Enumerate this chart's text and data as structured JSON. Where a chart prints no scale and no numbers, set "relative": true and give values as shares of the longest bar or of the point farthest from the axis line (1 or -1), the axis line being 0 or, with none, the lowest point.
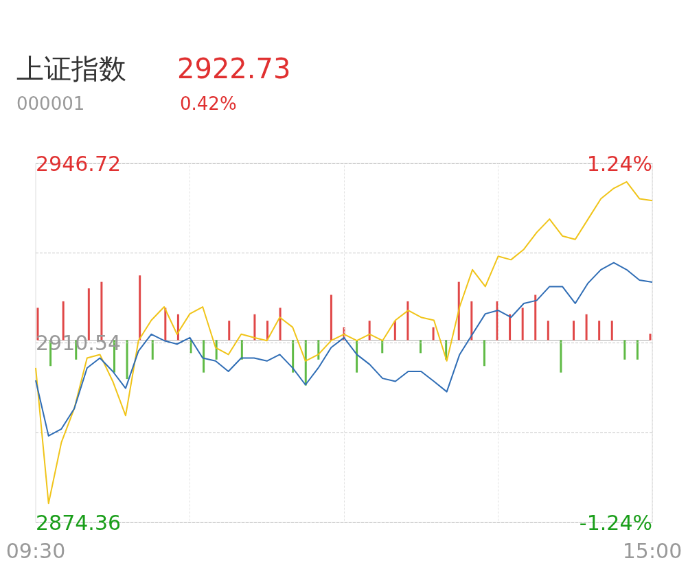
{
  "chart_data": [
    {
      "type": "line",
      "title": "上证指数",
      "annotations": [
        "2922.73",
        "000001",
        "0.42%"
      ],
      "categories": [
        "09:30",
        null,
        null,
        null,
        null,
        null,
        null,
        null,
        null,
        null,
        null,
        null,
        null,
        null,
        null,
        null,
        null,
        null,
        null,
        null,
        null,
        null,
        null,
        null,
        null,
        null,
        null,
        null,
        null,
        null,
        null,
        null,
        null,
        null,
        null,
        null,
        null,
        null,
        null,
        null,
        null,
        null,
        null,
        null,
        null,
        null,
        null,
        null,
        "15:00"
      ],
      "series": [
        {
          "color": "#f0c419",
          "values": [
            2905.5,
            2878.2,
            2890.5,
            2897.3,
            2907.5,
            2908.2,
            2902.8,
            2895.9,
            2911.0,
            2915.1,
            2917.8,
            2912.3,
            2916.4,
            2917.8,
            2909.6,
            2908.2,
            2912.3,
            2911.6,
            2911.0,
            2915.7,
            2913.7,
            2906.9,
            2908.2,
            2911.0,
            2912.3,
            2911.0,
            2912.3,
            2911.0,
            2915.1,
            2917.1,
            2915.7,
            2915.1,
            2906.9,
            2917.8,
            2925.3,
            2921.9,
            2928.0,
            2927.3,
            2929.4,
            2932.8,
            2935.5,
            2932.1,
            2931.4,
            2935.5,
            2939.6,
            2941.7,
            2943.0,
            2939.6,
            2939.2
          ]
        },
        {
          "color": "#2f6db5",
          "values": [
            2903.0,
            2891.8,
            2893.2,
            2897.3,
            2905.5,
            2907.5,
            2904.8,
            2901.4,
            2908.9,
            2912.3,
            2911.0,
            2910.3,
            2911.6,
            2907.5,
            2906.9,
            2904.8,
            2907.5,
            2907.5,
            2906.9,
            2908.2,
            2905.5,
            2902.1,
            2905.5,
            2909.6,
            2911.6,
            2908.2,
            2906.2,
            2903.4,
            2902.8,
            2904.8,
            2904.8,
            2902.8,
            2900.7,
            2908.2,
            2912.3,
            2916.4,
            2917.1,
            2915.7,
            2918.5,
            2919.1,
            2921.9,
            2921.9,
            2918.5,
            2922.6,
            2925.3,
            2926.7,
            2925.3,
            2923.2,
            2922.8
          ]
        }
      ],
      "ylim": [
        2874.36,
        2946.72
      ],
      "yticks": [
        2874.36,
        {
          "value": 2892.45,
          "label": null
        },
        2910.54,
        {
          "value": 2928.63,
          "label": null
        },
        2946.72
      ],
      "y2lim": [
        -1.24,
        1.24
      ],
      "y2ticks": [
        {
          "value": -1.24,
          "label": "-1.24%"
        },
        {
          "value": 1.24,
          "label": "1.24%"
        }
      ],
      "grid": true,
      "marker": "none",
      "line_style": "solid"
    },
    {
      "type": "bar",
      "relative": true,
      "categories": [
        null,
        null,
        null,
        null,
        null,
        null,
        null,
        null,
        null,
        null,
        null,
        null,
        null,
        null,
        null,
        null,
        null,
        null,
        null,
        null,
        null,
        null,
        null,
        null,
        null,
        null,
        null,
        null,
        null,
        null,
        null,
        null,
        null,
        null,
        null,
        null,
        null,
        null,
        null,
        null,
        null,
        null,
        null,
        null,
        null,
        null,
        null,
        null,
        null
      ],
      "values": [
        0.5,
        -0.4,
        0.6,
        -0.3,
        0.8,
        0.9,
        -0.5,
        -0.6,
        1,
        -0.3,
        0.5,
        0.4,
        -0.2,
        -0.5,
        -0.3,
        0.3,
        -0.3,
        0.4,
        0.3,
        0.5,
        -0.5,
        -0.7,
        -0.3,
        0.7,
        0.2,
        -0.5,
        0.3,
        -0.2,
        0.3,
        0.6,
        -0.2,
        0.2,
        -0.3,
        0.9,
        0.6,
        -0.4,
        0.6,
        0.4,
        0.5,
        0.7,
        0.3,
        -0.5,
        0.3,
        0.4,
        0.3,
        0.3,
        -0.3,
        -0.3,
        0.1
      ],
      "colors": [
        "#e04848",
        "#5fba45",
        "#e04848",
        "#5fba45",
        "#e04848",
        "#e04848",
        "#5fba45",
        "#5fba45",
        "#e04848",
        "#5fba45",
        "#e04848",
        "#e04848",
        "#5fba45",
        "#5fba45",
        "#5fba45",
        "#e04848",
        "#5fba45",
        "#e04848",
        "#e04848",
        "#e04848",
        "#5fba45",
        "#5fba45",
        "#5fba45",
        "#e04848",
        "#e04848",
        "#5fba45",
        "#e04848",
        "#5fba45",
        "#e04848",
        "#e04848",
        "#5fba45",
        "#e04848",
        "#5fba45",
        "#e04848",
        "#e04848",
        "#5fba45",
        "#e04848",
        "#e04848",
        "#e04848",
        "#e04848",
        "#e04848",
        "#5fba45",
        "#e04848",
        "#e04848",
        "#e04848",
        "#e04848",
        "#5fba45",
        "#5fba45",
        "#e04848"
      ]
    }
  ]
}
